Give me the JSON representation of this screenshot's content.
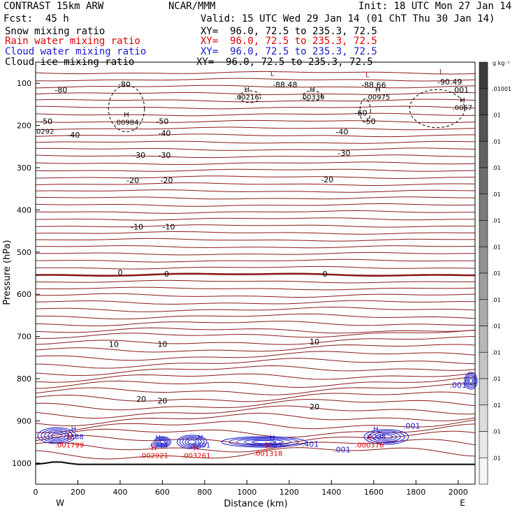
{
  "header": {
    "model": "CONTRAST 15km ARW",
    "org": "NCAR/MMM",
    "init": "Init: 18 UTC Mon 27 Jan 14",
    "fcst_label": "Fcst:",
    "fcst_value": "45 h",
    "valid": "Valid: 15 UTC Wed 29 Jan 14 (01 ChT Thu 30 Jan 14)",
    "fields": [
      {
        "name": "Snow mixing ratio",
        "xy": "XY=  96.0, 72.5 to 235.3, 72.5",
        "color": "#000000"
      },
      {
        "name": "Rain water mixing ratio",
        "xy": "XY=  96.0, 72.5 to 235.3, 72.5",
        "color": "#e00000"
      },
      {
        "name": "Cloud water mixing ratio",
        "xy": "XY=  96.0, 72.5 to 235.3, 72.5",
        "color": "#1a1acc"
      },
      {
        "name": "Cloud ice mixing ratio",
        "xy": "XY=  96.0, 72.5 to 235.3, 72.5",
        "color": "#000000"
      }
    ]
  },
  "colorbar": {
    "unit": "g kg⁻¹",
    "labels": [
      ".01001",
      ".01",
      ".01",
      ".01",
      ".01",
      ".01",
      ".01",
      ".01",
      ".01",
      ".01",
      ".01",
      ".01",
      ".01",
      ".01",
      ".01"
    ]
  },
  "chart_data": {
    "type": "contour-cross-section",
    "xlabel": "Distance (km)",
    "ylabel": "Pressure (hPa)",
    "xlim": [
      0,
      2080
    ],
    "ylim": [
      1050,
      50
    ],
    "x_ticks": [
      0,
      200,
      400,
      600,
      800,
      1000,
      1200,
      1400,
      1600,
      1800,
      2000
    ],
    "y_ticks": [
      100,
      200,
      300,
      400,
      500,
      600,
      700,
      800,
      900,
      1000
    ],
    "x_end_labels": {
      "left": "W",
      "right": "E"
    },
    "temperature_contour_labels": [
      {
        "text": "-80",
        "x": 420,
        "p": 102
      },
      {
        "text": "-80",
        "x": 120,
        "p": 115
      },
      {
        "text": "-88.48",
        "x": 1180,
        "p": 103
      },
      {
        "text": "-88.66",
        "x": 1600,
        "p": 104
      },
      {
        "text": "-90.49",
        "x": 1960,
        "p": 96
      },
      {
        "text": ".001",
        "x": 2010,
        "p": 115
      },
      {
        "text": "-60",
        "x": 1540,
        "p": 170
      },
      {
        "text": "-50",
        "x": 50,
        "p": 190
      },
      {
        "text": "-50",
        "x": 600,
        "p": 190
      },
      {
        "text": "-50",
        "x": 1580,
        "p": 190
      },
      {
        "text": "-40",
        "x": 180,
        "p": 222
      },
      {
        "text": "-40",
        "x": 610,
        "p": 218
      },
      {
        "text": "-40",
        "x": 1450,
        "p": 215
      },
      {
        "text": "-30",
        "x": 490,
        "p": 270
      },
      {
        "text": "-30",
        "x": 610,
        "p": 270
      },
      {
        "text": "-30",
        "x": 1460,
        "p": 265
      },
      {
        "text": "-20",
        "x": 460,
        "p": 330
      },
      {
        "text": "-20",
        "x": 620,
        "p": 330
      },
      {
        "text": "-20",
        "x": 1380,
        "p": 328
      },
      {
        "text": "-10",
        "x": 480,
        "p": 440
      },
      {
        "text": "-10",
        "x": 630,
        "p": 440
      },
      {
        "text": "0",
        "x": 400,
        "p": 548
      },
      {
        "text": "0",
        "x": 620,
        "p": 552
      },
      {
        "text": "0",
        "x": 1370,
        "p": 552
      },
      {
        "text": "10",
        "x": 370,
        "p": 718
      },
      {
        "text": "10",
        "x": 600,
        "p": 718
      },
      {
        "text": "10",
        "x": 1320,
        "p": 712
      },
      {
        "text": "20",
        "x": 500,
        "p": 848
      },
      {
        "text": "20",
        "x": 600,
        "p": 852
      },
      {
        "text": "20",
        "x": 1320,
        "p": 866
      }
    ],
    "extrema": [
      {
        "kind": "L",
        "x": 1120,
        "p": 83,
        "color": "#8b1a1a"
      },
      {
        "kind": "L",
        "x": 1570,
        "p": 86,
        "color": "#8b1a1a"
      },
      {
        "kind": "L",
        "x": 1920,
        "p": 78,
        "color": "#8b1a1a"
      },
      {
        "kind": "H",
        "x": 1000,
        "p": 120,
        "color": "#000000",
        "value": ".00216"
      },
      {
        "kind": "H",
        "x": 1310,
        "p": 120,
        "color": "#000000",
        "value": ".00339"
      },
      {
        "kind": "H",
        "x": 1620,
        "p": 120,
        "color": "#000000",
        "value": ".00975"
      },
      {
        "kind": "H",
        "x": 2020,
        "p": 145,
        "color": "#000000",
        "value": ".0067"
      },
      {
        "kind": "H",
        "x": 430,
        "p": 180,
        "color": "#000000",
        "value": ".00984"
      },
      {
        "kind": "H",
        "x": 180,
        "p": 925,
        "color": "#1a1acc",
        "value": ".5388"
      },
      {
        "kind": "H",
        "x": 580,
        "p": 945,
        "color": "#1a1acc",
        "value": ".6214"
      },
      {
        "kind": "H",
        "x": 780,
        "p": 945,
        "color": "#1a1acc",
        "value": ".6401"
      },
      {
        "kind": "H",
        "x": 1120,
        "p": 945,
        "color": "#1a1acc",
        "value": ".5503"
      },
      {
        "kind": "H",
        "x": 1610,
        "p": 925,
        "color": "#1a1acc",
        "value": ".4288"
      },
      {
        "kind": "H",
        "x": 160,
        "p": 945,
        "color": "#e00000",
        "value": ".001799"
      },
      {
        "kind": "H",
        "x": 560,
        "p": 970,
        "color": "#e00000",
        "value": ".002921"
      },
      {
        "kind": "H",
        "x": 760,
        "p": 970,
        "color": "#e00000",
        "value": ".003261"
      },
      {
        "kind": "H",
        "x": 1100,
        "p": 965,
        "color": "#e00000",
        "value": ".001318"
      },
      {
        "kind": "H",
        "x": 1580,
        "p": 945,
        "color": "#e00000",
        "value": ".000376"
      }
    ],
    "cloud_water_labels": [
      {
        "text": ".401",
        "x": 1300,
        "p": 955
      },
      {
        "text": ".001",
        "x": 1780,
        "p": 912
      },
      {
        "text": ".001",
        "x": 1450,
        "p": 968
      },
      {
        "text": ".001",
        "x": 2000,
        "p": 815
      }
    ],
    "snow_labels": [
      {
        "text": "0292",
        "x": 0,
        "p": 213
      }
    ]
  }
}
